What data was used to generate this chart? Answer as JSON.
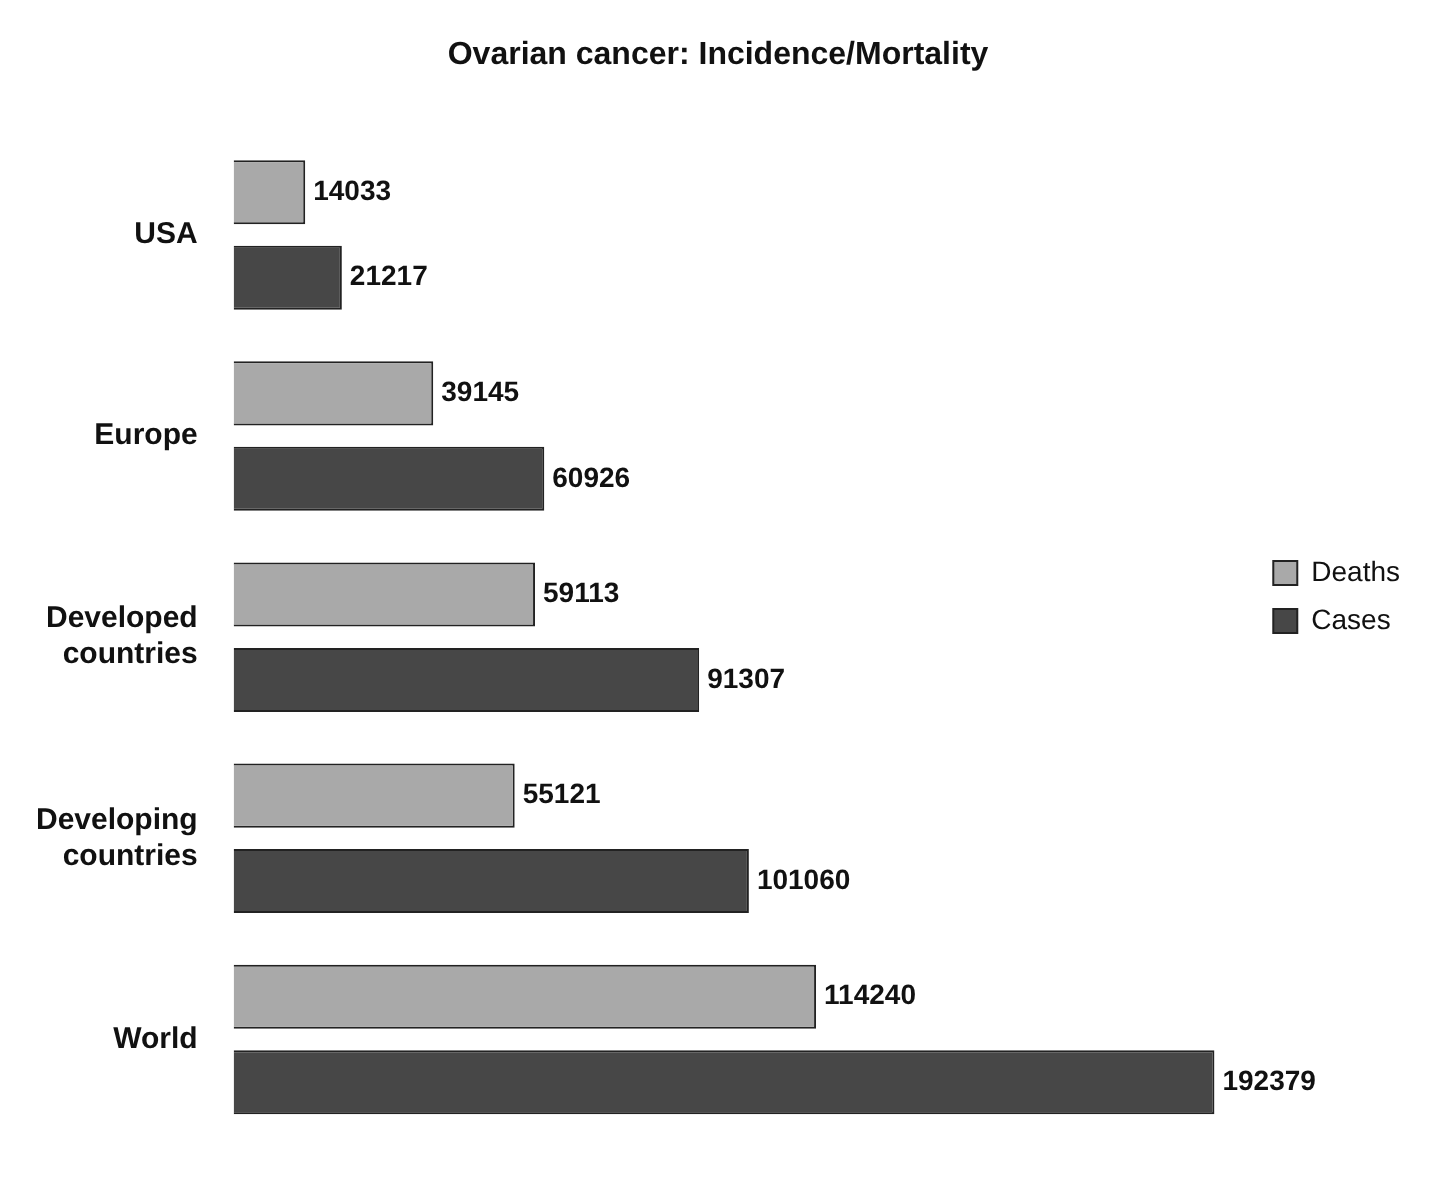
{
  "chart_data": {
    "type": "bar",
    "orientation": "horizontal",
    "title": "Ovarian cancer: Incidence/Mortality",
    "categories": [
      "USA",
      "Europe",
      "Developed countries",
      "Developing countries",
      "World"
    ],
    "series": [
      {
        "name": "Deaths",
        "color": "#a9a9a9",
        "values": [
          14033,
          39145,
          59113,
          55121,
          114240
        ]
      },
      {
        "name": "Cases",
        "color": "#474747",
        "values": [
          21217,
          60926,
          91307,
          101060,
          192379
        ]
      }
    ],
    "data_labels": true,
    "legend": "right"
  }
}
